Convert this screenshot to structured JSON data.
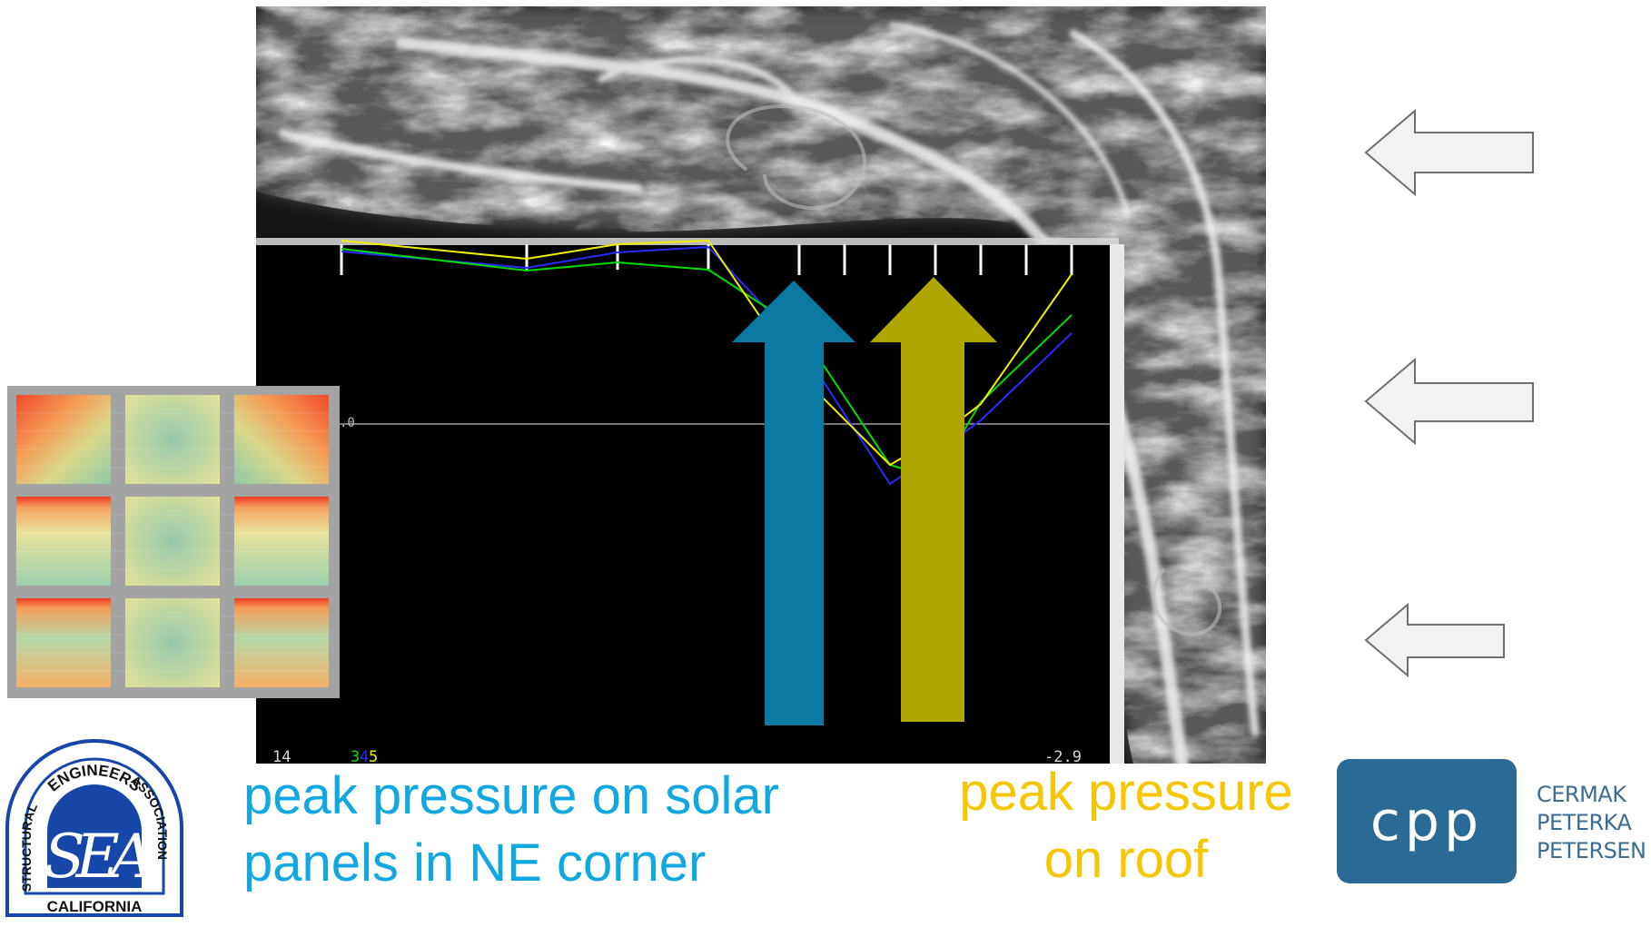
{
  "plot_overlay": {
    "zero_label": ".0",
    "bottom_left_label": "14",
    "legend_numbers": [
      {
        "text": "3",
        "color": "#00dd00"
      },
      {
        "text": "4",
        "color": "#2a2aff"
      },
      {
        "text": "5",
        "color": "#f0f000"
      }
    ],
    "bottom_right_label": "-2.9"
  },
  "captions": {
    "solar": {
      "line1": "peak pressure on solar",
      "line2": "panels in NE corner",
      "color": "#11a7e0"
    },
    "roof": {
      "line1": "peak pressure",
      "line2": "on roof",
      "color": "#f7c600"
    }
  },
  "arrows": {
    "solar_color": "#0b7aa3",
    "roof_color": "#b0a600"
  },
  "sea_logo": {
    "top_text": "ENGINEERS",
    "left_text": "STRUCTURAL",
    "right_text": "ASSOCIATION",
    "monogram": "SEA",
    "bottom_text": "CALIFORNIA",
    "color": "#1646a8"
  },
  "cpp_logo": {
    "mark": "cpp",
    "names": [
      "CERMAK",
      "PETERKA",
      "PETERSEN"
    ],
    "color": "#2a6b96"
  },
  "wind_arrows": {
    "count": 3,
    "icon": "left-arrow-icon"
  }
}
